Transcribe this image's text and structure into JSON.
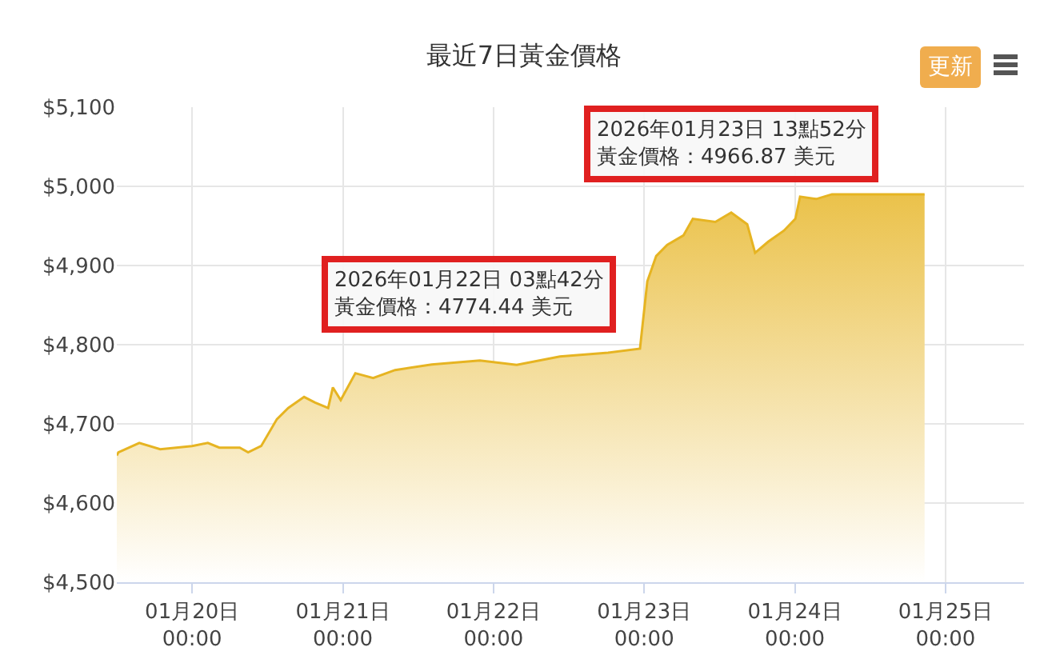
{
  "chart_data": {
    "type": "area",
    "title": "最近7日黃金價格",
    "x": [
      "2026-01-19T12:00",
      "2026-01-19T12:15",
      "2026-01-19T15:35",
      "2026-01-19T18:55",
      "2026-01-20T00:00",
      "2026-01-20T02:30",
      "2026-01-20T04:20",
      "2026-01-20T07:35",
      "2026-01-20T08:55",
      "2026-01-20T11:00",
      "2026-01-20T13:30",
      "2026-01-20T15:18",
      "2026-01-20T17:50",
      "2026-01-20T19:35",
      "2026-01-20T21:40",
      "2026-01-20T22:25",
      "2026-01-20T23:40",
      "2026-01-21T02:00",
      "2026-01-21T04:50",
      "2026-01-21T08:20",
      "2026-01-21T14:10",
      "2026-01-21T21:50",
      "2026-01-22T03:42",
      "2026-01-22T10:35",
      "2026-01-22T18:15",
      "2026-01-22T23:20",
      "2026-01-23T00:30",
      "2026-01-23T01:55",
      "2026-01-23T03:40",
      "2026-01-23T06:15",
      "2026-01-23T07:45",
      "2026-01-23T11:20",
      "2026-01-23T13:52",
      "2026-01-23T16:25",
      "2026-01-23T17:40",
      "2026-01-23T19:45",
      "2026-01-23T22:15",
      "2026-01-24T00:05",
      "2026-01-24T00:50",
      "2026-01-24T03:25",
      "2026-01-24T05:55",
      "2026-01-24T20:40"
    ],
    "series": [
      {
        "color": "#e6b422",
        "values": [
          4660,
          4664,
          4676,
          4668,
          4672,
          4676,
          4670,
          4670,
          4664,
          4672,
          4706,
          4720,
          4734,
          4727,
          4720,
          4746,
          4730,
          4764,
          4758,
          4768,
          4775,
          4780,
          4774.44,
          4785,
          4790,
          4795,
          4880,
          4912,
          4926,
          4938,
          4959,
          4955,
          4966.87,
          4952,
          4916,
          4930,
          4944,
          4959,
          4987,
          4984,
          4990,
          4990
        ]
      }
    ],
    "xlim": [
      "2026-01-19T12:00",
      "2026-01-25T12:30"
    ],
    "xticks": [
      {
        "value": "2026-01-20",
        "label": "01月20日\n00:00"
      },
      {
        "value": "2026-01-21",
        "label": "01月21日\n00:00"
      },
      {
        "value": "2026-01-22",
        "label": "01月22日\n00:00"
      },
      {
        "value": "2026-01-23",
        "label": "01月23日\n00:00"
      },
      {
        "value": "2026-01-24",
        "label": "01月24日\n00:00"
      },
      {
        "value": "2026-01-25",
        "label": "01月25日\n00:00"
      }
    ],
    "ylim": [
      4500,
      5100
    ],
    "yticks": [
      {
        "value": 4500,
        "label": "$4,500"
      },
      {
        "value": 4600,
        "label": "$4,600"
      },
      {
        "value": 4700,
        "label": "$4,700"
      },
      {
        "value": 4800,
        "label": "$4,800"
      },
      {
        "value": 4900,
        "label": "$4,900"
      },
      {
        "value": 5000,
        "label": "$5,000"
      },
      {
        "value": 5100,
        "label": "$5,100"
      }
    ],
    "annotations": [
      {
        "text": "2026年01月22日 03點42分黃金價格：4774.44 美元",
        "x": "2026-01-22T03:42",
        "y": 4774.44
      },
      {
        "text": "2026年01月23日 13點52分黃金價格：4966.87 美元",
        "x": "2026-01-23T13:52",
        "y": 4966.87
      },
      "更新"
    ],
    "grid": true,
    "marker": "none",
    "line_style": "solid"
  }
}
